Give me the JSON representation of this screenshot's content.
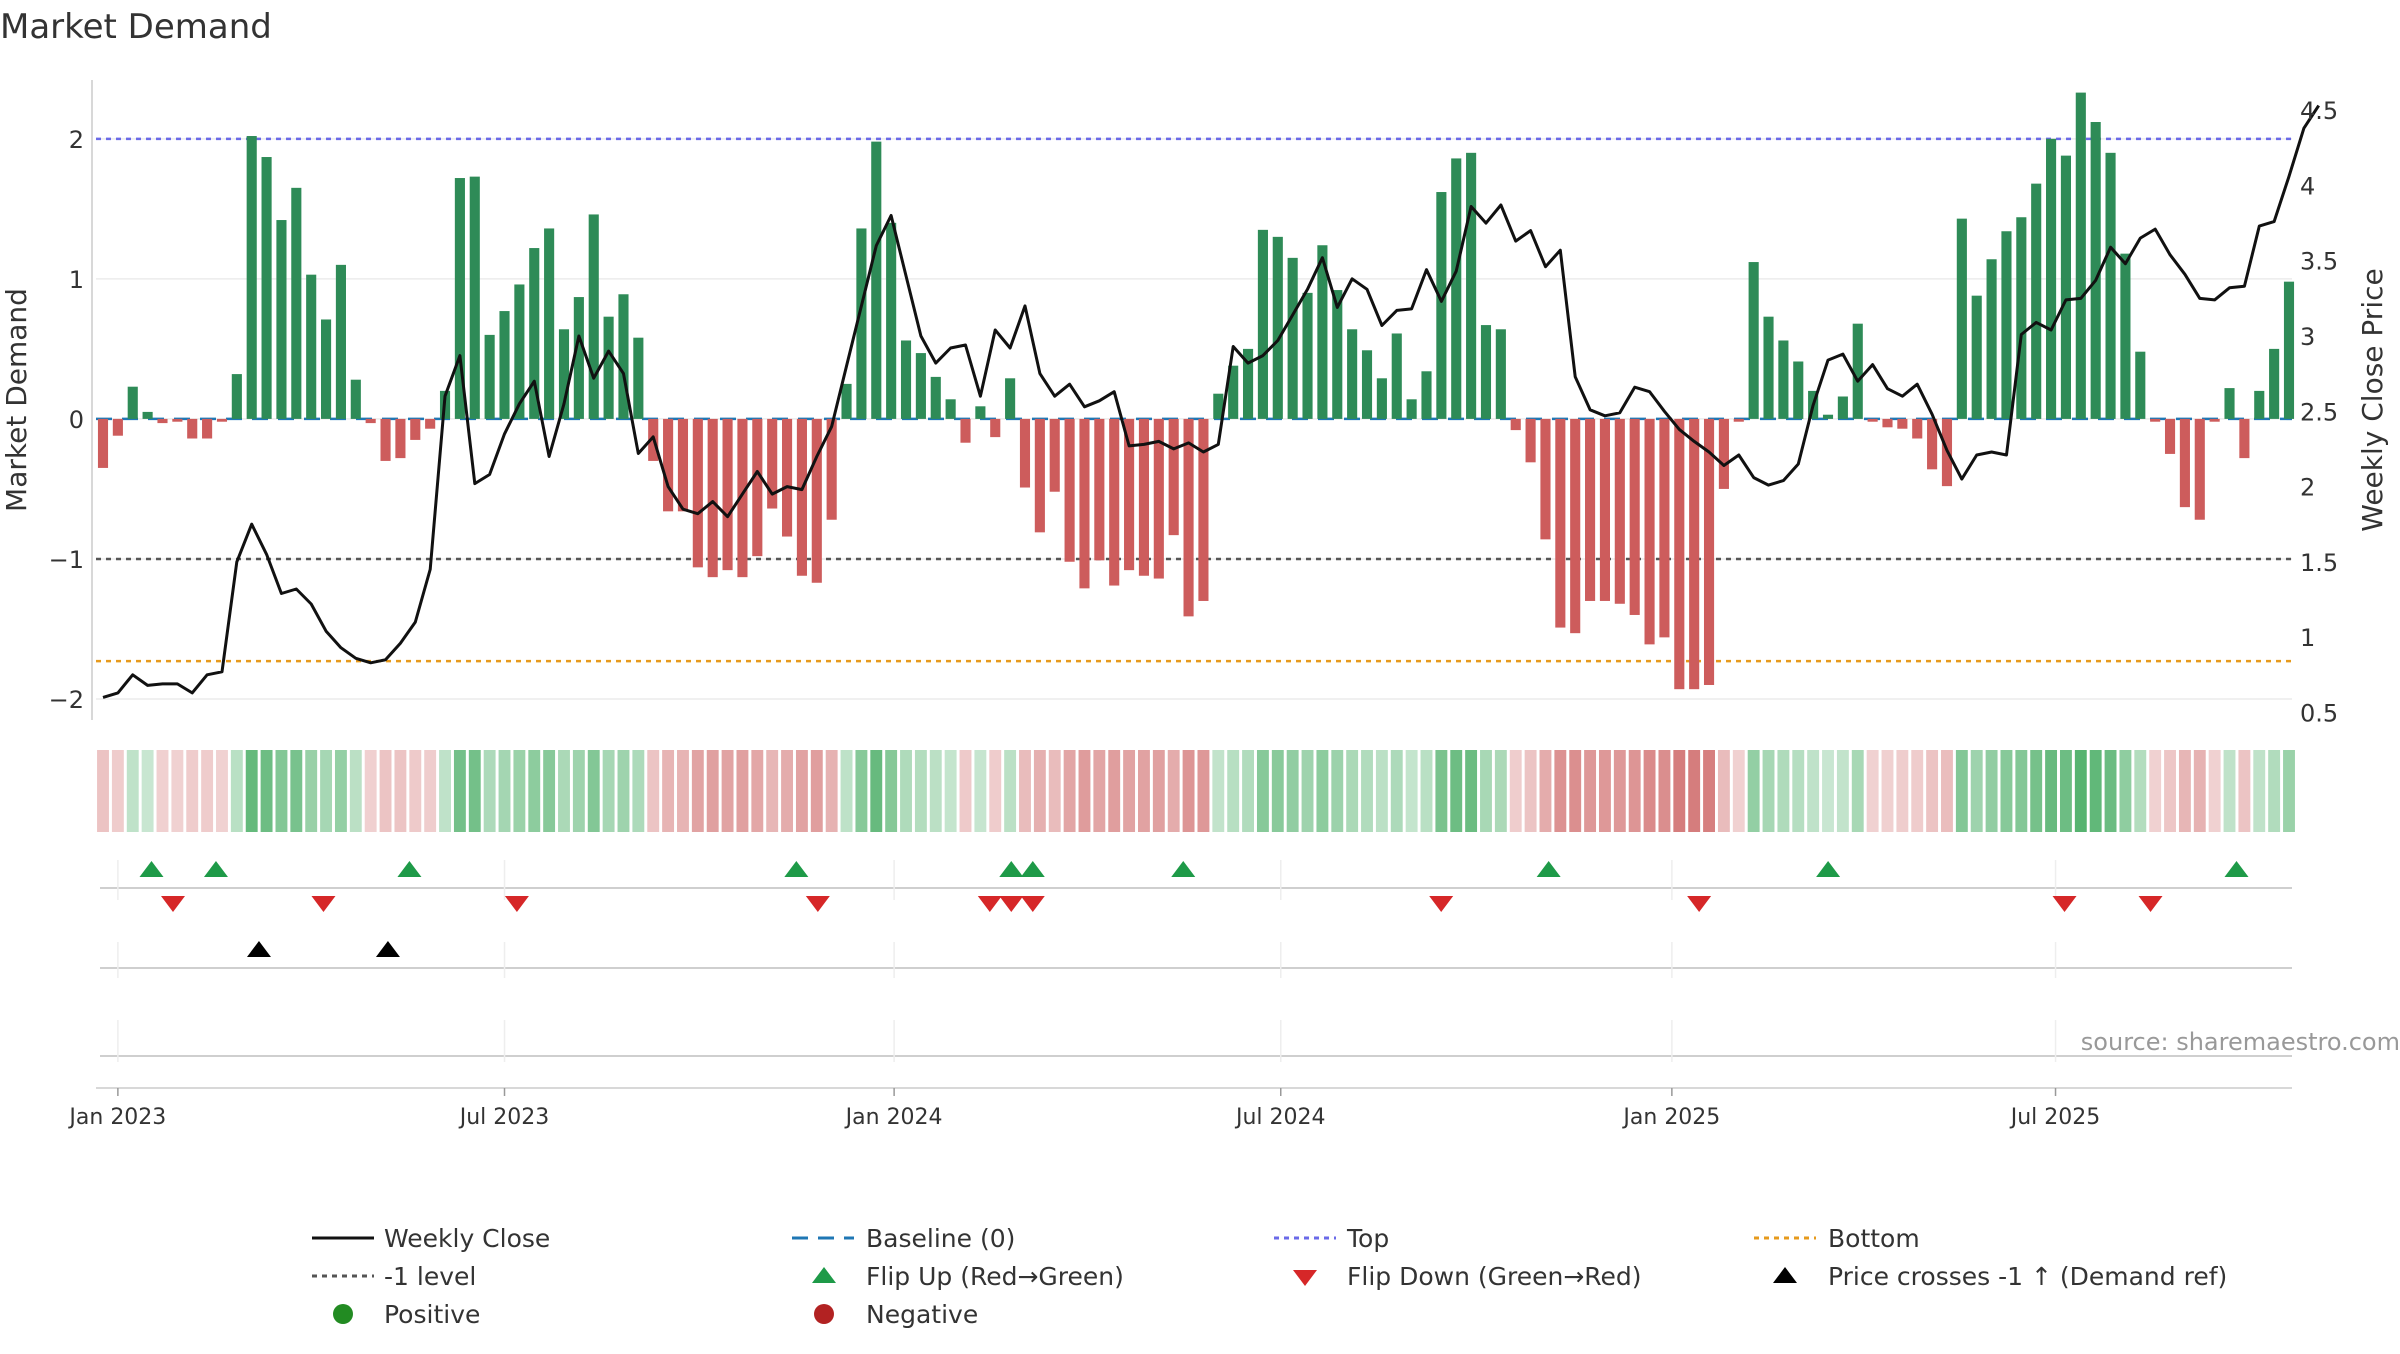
{
  "title": "Market Demand",
  "source": "source: sharemaestro.com",
  "colors": {
    "positive": "#2e8b57",
    "negative": "#cd5c5c",
    "price_line": "#111111",
    "baseline": "#1f77b4",
    "top": "#6a6ae8",
    "minus1": "#555555",
    "bottom": "#e69a1c",
    "flip_up": "#1e9a48",
    "flip_down": "#d62728",
    "cross": "#000000",
    "legend_positive": "#228b22",
    "legend_negative": "#b22222"
  },
  "chart_data": {
    "type": "bar",
    "left_axis_label": "Market Demand",
    "right_axis_label": "Weekly Close Price",
    "ylim_left": [
      -2.15,
      2.42
    ],
    "ylim_right": [
      0.45,
      4.7
    ],
    "left_ticks": [
      2,
      1,
      0,
      -1,
      -2
    ],
    "left_tick_labels": [
      "2",
      "1",
      "0",
      "−1",
      "−2"
    ],
    "right_ticks": [
      4.5,
      4,
      3.5,
      3,
      2.5,
      2,
      1.5,
      1,
      0.5
    ],
    "right_tick_labels": [
      "4.5",
      "4",
      "3.5",
      "3",
      "2.5",
      "2",
      "1.5",
      "1",
      "0.5"
    ],
    "x_ticks": [
      {
        "label": "Jan 2023",
        "week": 1
      },
      {
        "label": "Jul 2023",
        "week": 27
      },
      {
        "label": "Jan 2024",
        "week": 53.2
      },
      {
        "label": "Jul 2024",
        "week": 79.2
      },
      {
        "label": "Jan 2025",
        "week": 105.5
      },
      {
        "label": "Jul 2025",
        "week": 131.3
      }
    ],
    "reference_lines": {
      "top": 2,
      "minus1": -1,
      "bottom": -1.73,
      "baseline": 0
    },
    "weeks_start": "2022-12-26",
    "demand": [
      -0.35,
      -0.12,
      0.23,
      0.05,
      -0.03,
      -0.02,
      -0.14,
      -0.14,
      -0.02,
      0.32,
      2.02,
      1.87,
      1.42,
      1.65,
      1.03,
      0.71,
      1.1,
      0.28,
      -0.03,
      -0.3,
      -0.28,
      -0.15,
      -0.07,
      0.2,
      1.72,
      1.73,
      0.6,
      0.77,
      0.96,
      1.22,
      1.36,
      0.64,
      0.87,
      1.46,
      0.73,
      0.89,
      0.58,
      -0.3,
      -0.66,
      -0.66,
      -1.06,
      -1.13,
      -1.08,
      -1.13,
      -0.98,
      -0.64,
      -0.84,
      -1.12,
      -1.17,
      -0.72,
      0.25,
      1.36,
      1.98,
      1.4,
      0.56,
      0.47,
      0.3,
      0.14,
      -0.17,
      0.09,
      -0.13,
      0.29,
      -0.49,
      -0.81,
      -0.52,
      -1.02,
      -1.21,
      -1.01,
      -1.19,
      -1.08,
      -1.12,
      -1.14,
      -0.83,
      -1.41,
      -1.3,
      0.18,
      0.38,
      0.5,
      1.35,
      1.3,
      1.15,
      0.9,
      1.24,
      0.92,
      0.64,
      0.49,
      0.29,
      0.61,
      0.14,
      0.34,
      1.62,
      1.86,
      1.9,
      0.67,
      0.64,
      -0.08,
      -0.31,
      -0.86,
      -1.49,
      -1.53,
      -1.3,
      -1.3,
      -1.32,
      -1.4,
      -1.61,
      -1.56,
      -1.93,
      -1.93,
      -1.9,
      -0.5,
      -0.02,
      1.12,
      0.73,
      0.56,
      0.41,
      0.2,
      0.03,
      0.16,
      0.68,
      -0.02,
      -0.06,
      -0.07,
      -0.14,
      -0.36,
      -0.48,
      1.43,
      0.88,
      1.14,
      1.34,
      1.44,
      1.68,
      2.0,
      1.88,
      2.33,
      2.12,
      1.9,
      1.18,
      0.48,
      -0.02,
      -0.25,
      -0.63,
      -0.72,
      -0.02,
      0.22,
      -0.28,
      0.2,
      0.5,
      0.98
    ],
    "price": [
      0.6,
      0.63,
      0.75,
      0.68,
      0.69,
      0.69,
      0.63,
      0.75,
      0.77,
      1.5,
      1.75,
      1.55,
      1.29,
      1.32,
      1.22,
      1.04,
      0.93,
      0.86,
      0.83,
      0.85,
      0.96,
      1.1,
      1.45,
      2.6,
      2.87,
      2.02,
      2.08,
      2.35,
      2.55,
      2.7,
      2.2,
      2.55,
      3.0,
      2.72,
      2.9,
      2.75,
      2.22,
      2.33,
      2.0,
      1.85,
      1.82,
      1.9,
      1.8,
      1.95,
      2.1,
      1.95,
      2.0,
      1.98,
      2.2,
      2.4,
      2.8,
      3.2,
      3.6,
      3.8,
      3.4,
      3.0,
      2.82,
      2.92,
      2.94,
      2.6,
      3.04,
      2.92,
      3.2,
      2.75,
      2.6,
      2.68,
      2.53,
      2.57,
      2.63,
      2.27,
      2.28,
      2.3,
      2.25,
      2.29,
      2.23,
      2.28,
      2.93,
      2.82,
      2.87,
      2.97,
      3.14,
      3.31,
      3.52,
      3.19,
      3.38,
      3.31,
      3.07,
      3.17,
      3.18,
      3.44,
      3.23,
      3.43,
      3.86,
      3.75,
      3.87,
      3.63,
      3.7,
      3.46,
      3.57,
      2.73,
      2.51,
      2.47,
      2.49,
      2.66,
      2.63,
      2.5,
      2.38,
      2.3,
      2.23,
      2.14,
      2.21,
      2.06,
      2.01,
      2.04,
      2.15,
      2.54,
      2.84,
      2.88,
      2.7,
      2.81,
      2.65,
      2.6,
      2.68,
      2.48,
      2.24,
      2.05,
      2.21,
      2.23,
      2.21,
      3.01,
      3.09,
      3.04,
      3.24,
      3.25,
      3.37,
      3.59,
      3.48,
      3.65,
      3.71,
      3.54,
      3.41,
      3.25,
      3.24,
      3.32,
      3.33,
      3.73,
      3.76,
      4.06,
      4.38,
      4.53
    ]
  },
  "signals": {
    "flip_up_weeks": [
      1,
      4,
      13,
      31,
      41,
      42,
      49,
      66,
      79,
      98
    ],
    "flip_down_weeks": [
      2,
      9,
      18,
      32,
      40,
      41,
      42,
      61,
      73,
      90,
      94
    ],
    "cross_weeks": [
      6,
      12
    ]
  },
  "legend": {
    "weekly_close": "Weekly Close",
    "baseline": "Baseline (0)",
    "top": "Top",
    "bottom": "Bottom",
    "minus1": "-1 level",
    "flip_up": "Flip Up (Red→Green)",
    "flip_down": "Flip Down (Green→Red)",
    "cross": "Price crosses -1 ↑ (Demand ref)",
    "positive": "Positive",
    "negative": "Negative"
  }
}
